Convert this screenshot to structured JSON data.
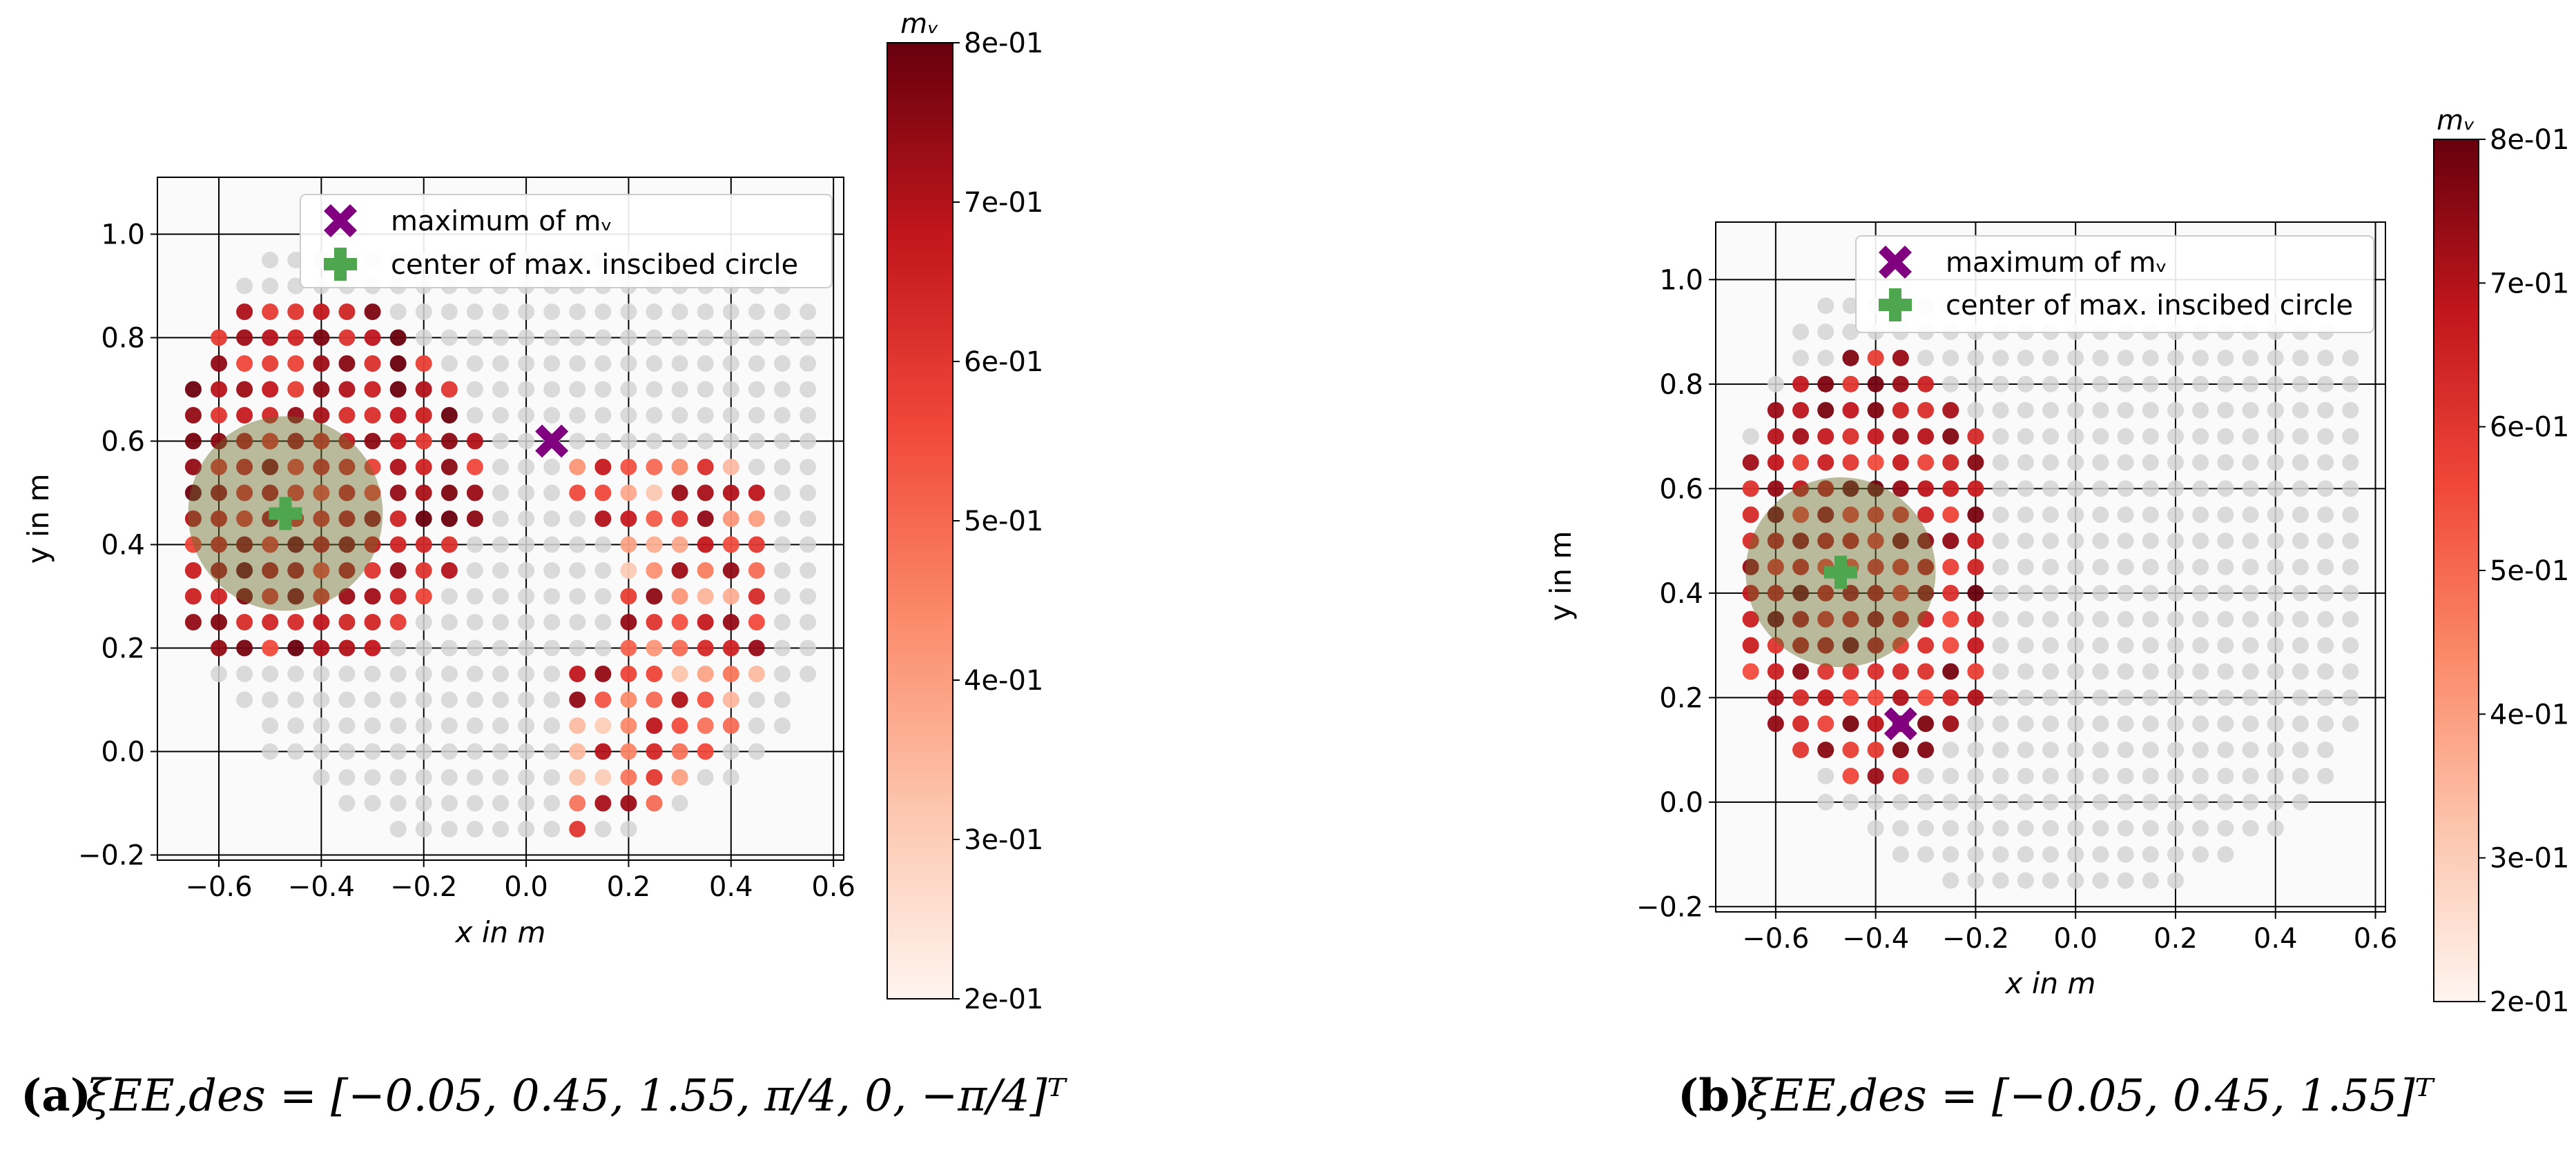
{
  "chart_data": [
    {
      "type": "scatter",
      "panel_label": "(a)",
      "caption": "ξEE,des = [−0.05, 0.45, 1.55, π/4, 0, −π/4]ᵀ",
      "xlabel": "x in m",
      "ylabel": "y in m",
      "xlim": [
        -0.72,
        0.62
      ],
      "ylim": [
        -0.21,
        1.11
      ],
      "xticks": [
        -0.6,
        -0.4,
        -0.2,
        0.0,
        0.2,
        0.4,
        0.6
      ],
      "xtick_labels": [
        "−0.6",
        "−0.4",
        "−0.2",
        "0.0",
        "0.2",
        "0.4",
        "0.6"
      ],
      "yticks": [
        -0.2,
        0.0,
        0.2,
        0.4,
        0.6,
        0.8,
        1.0
      ],
      "ytick_labels": [
        "−0.2",
        "0.0",
        "0.2",
        "0.4",
        "0.6",
        "0.8",
        "1.0"
      ],
      "grid": true,
      "legend": {
        "placement": "top-center",
        "entries": [
          "maximum of mᵥ",
          "center of max. inscibed circle"
        ]
      },
      "maximum_marker": {
        "x": 0.05,
        "y": 0.6
      },
      "inscribed_circle": {
        "center_x": -0.47,
        "center_y": 0.46,
        "radius": 0.19
      },
      "colorbar": {
        "title": "mᵥ",
        "min": 0.2,
        "max": 0.8,
        "tick_labels": [
          "8e-01",
          "7e-01",
          "6e-01",
          "5e-01",
          "4e-01",
          "3e-01",
          "2e-01"
        ]
      },
      "grid_step": 0.05
    },
    {
      "type": "scatter",
      "panel_label": "(b)",
      "caption": "ξEE,des = [−0.05, 0.45, 1.55]ᵀ",
      "xlabel": "x in m",
      "ylabel": "y in m",
      "xlim": [
        -0.72,
        0.62
      ],
      "ylim": [
        -0.21,
        1.11
      ],
      "xticks": [
        -0.6,
        -0.4,
        -0.2,
        0.0,
        0.2,
        0.4,
        0.6
      ],
      "xtick_labels": [
        "−0.6",
        "−0.4",
        "−0.2",
        "0.0",
        "0.2",
        "0.4",
        "0.6"
      ],
      "yticks": [
        -0.2,
        0.0,
        0.2,
        0.4,
        0.6,
        0.8,
        1.0
      ],
      "ytick_labels": [
        "−0.2",
        "0.0",
        "0.2",
        "0.4",
        "0.6",
        "0.8",
        "1.0"
      ],
      "grid": true,
      "legend": {
        "placement": "top-right",
        "entries": [
          "maximum of mᵥ",
          "center of max. inscibed circle"
        ]
      },
      "maximum_marker": {
        "x": -0.35,
        "y": 0.15
      },
      "inscribed_circle": {
        "center_x": -0.47,
        "center_y": 0.44,
        "radius": 0.19
      },
      "colorbar": {
        "title": "mᵥ",
        "min": 0.2,
        "max": 0.8,
        "tick_labels": [
          "8e-01",
          "7e-01",
          "6e-01",
          "5e-01",
          "4e-01",
          "3e-01",
          "2e-01"
        ]
      },
      "grid_step": 0.05
    }
  ],
  "colors": {
    "dark_red": "#67000d",
    "red": "#e8352a",
    "salmon": "#fb8a6a",
    "light": "#fff5f0",
    "gray_dot": "#d4d4d4",
    "purple_marker": "#800080",
    "green_marker": "#4ea64e",
    "circle_fill": "#6b6b2a"
  }
}
